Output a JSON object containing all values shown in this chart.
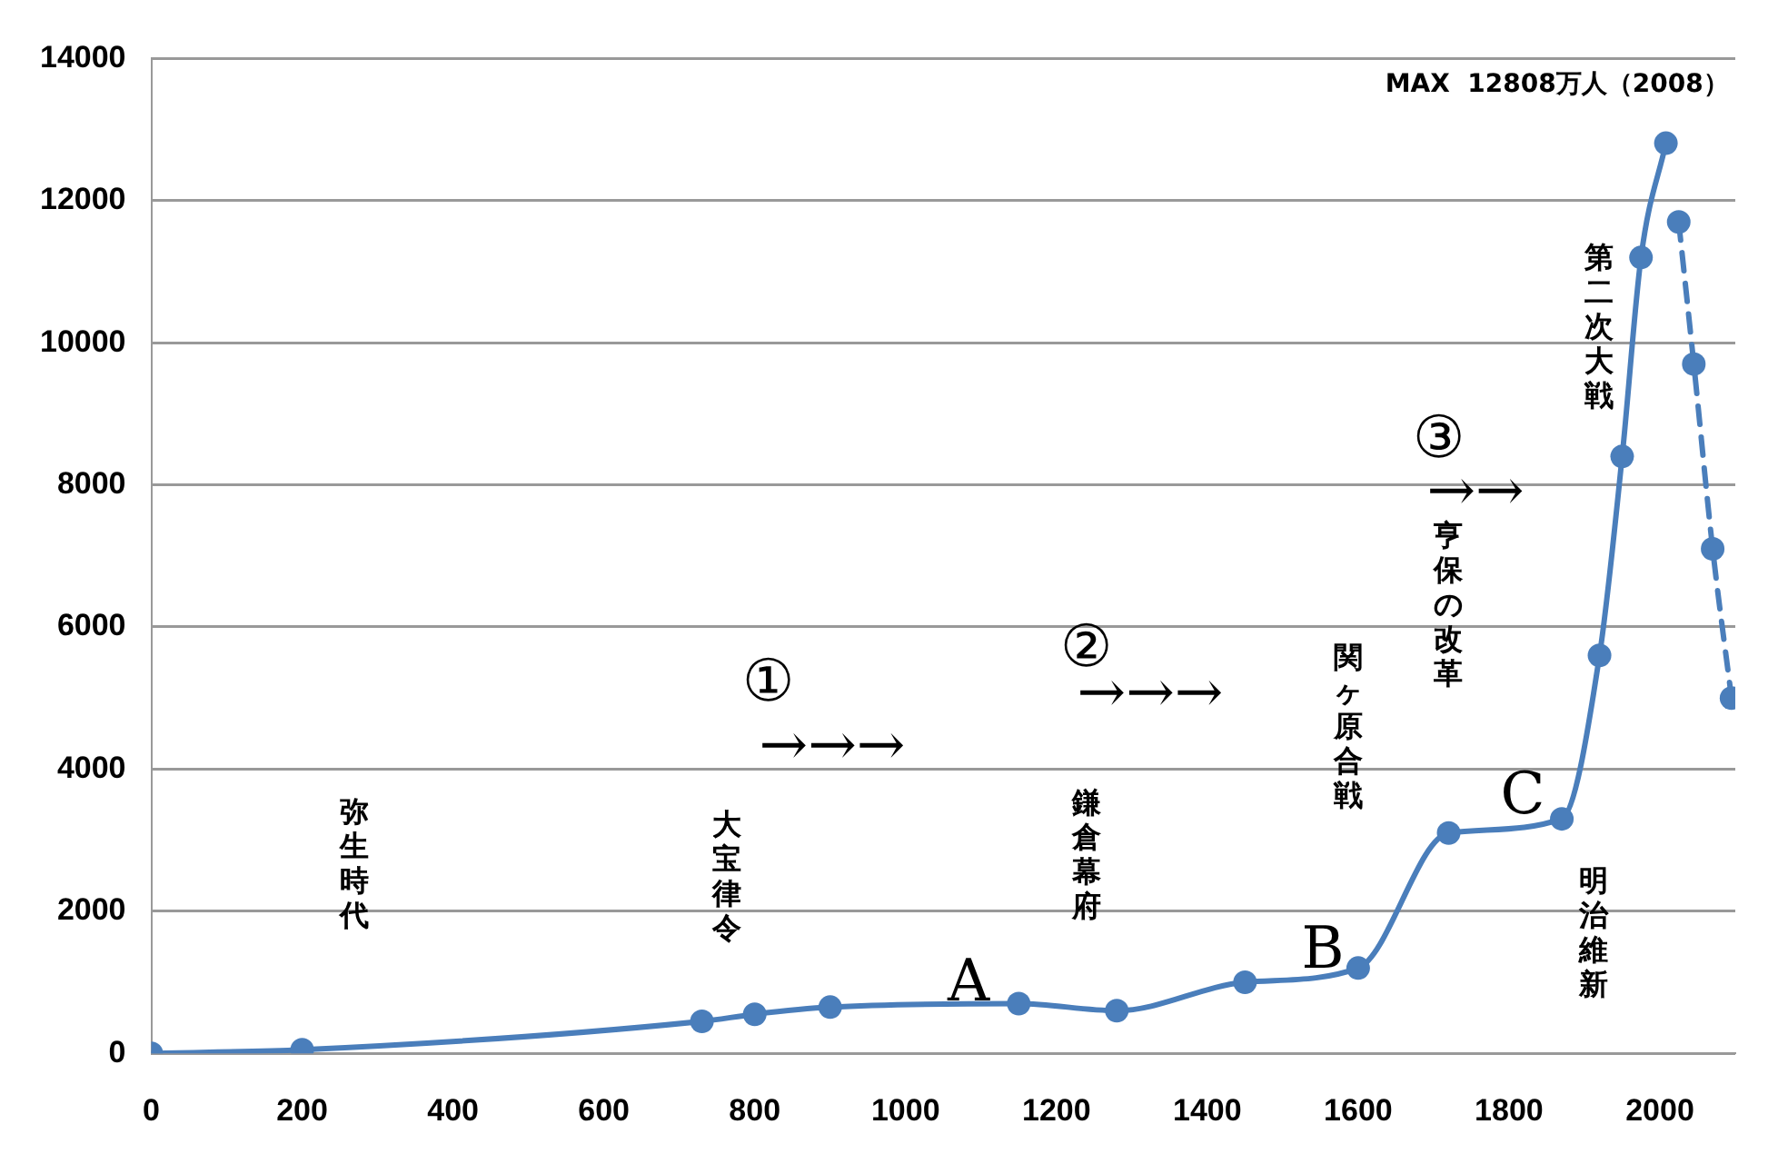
{
  "chart_data": {
    "type": "line",
    "xlim": [
      0,
      2100
    ],
    "xticks": [
      0,
      200,
      400,
      600,
      800,
      1000,
      1200,
      1400,
      1600,
      1800,
      2000
    ],
    "ylim": [
      0,
      14000
    ],
    "yticks": [
      0,
      2000,
      4000,
      6000,
      8000,
      10000,
      12000,
      14000
    ],
    "grid": "y",
    "marker": "circle",
    "legend": false,
    "series": [
      {
        "color": "#4a7ebb",
        "line_style": "solid",
        "x": [
          0,
          200,
          730,
          800,
          900,
          1150,
          1280,
          1450,
          1600,
          1720,
          1870,
          1920,
          1950,
          1975,
          2008
        ],
        "values": [
          0,
          50,
          450,
          550,
          650,
          700,
          600,
          1000,
          1200,
          3100,
          3300,
          5600,
          8400,
          11200,
          12808
        ]
      },
      {
        "color": "#4a7ebb",
        "line_style": "dashed",
        "x": [
          2025,
          2045,
          2070,
          2095
        ],
        "values": [
          11700,
          9700,
          7100,
          5000
        ]
      }
    ],
    "annotations": [
      {
        "text": "MAX  12808万人（2008）",
        "x": 2008,
        "y": 12808
      },
      "弥生時代",
      "大宝律令",
      "鎌倉幕府",
      "関ヶ原合戦",
      "亨保の改革",
      "第二次大戦",
      "明治維新",
      "A",
      "B",
      "C",
      "①",
      "→→→",
      "②",
      "→→→",
      "③",
      "→→"
    ]
  }
}
